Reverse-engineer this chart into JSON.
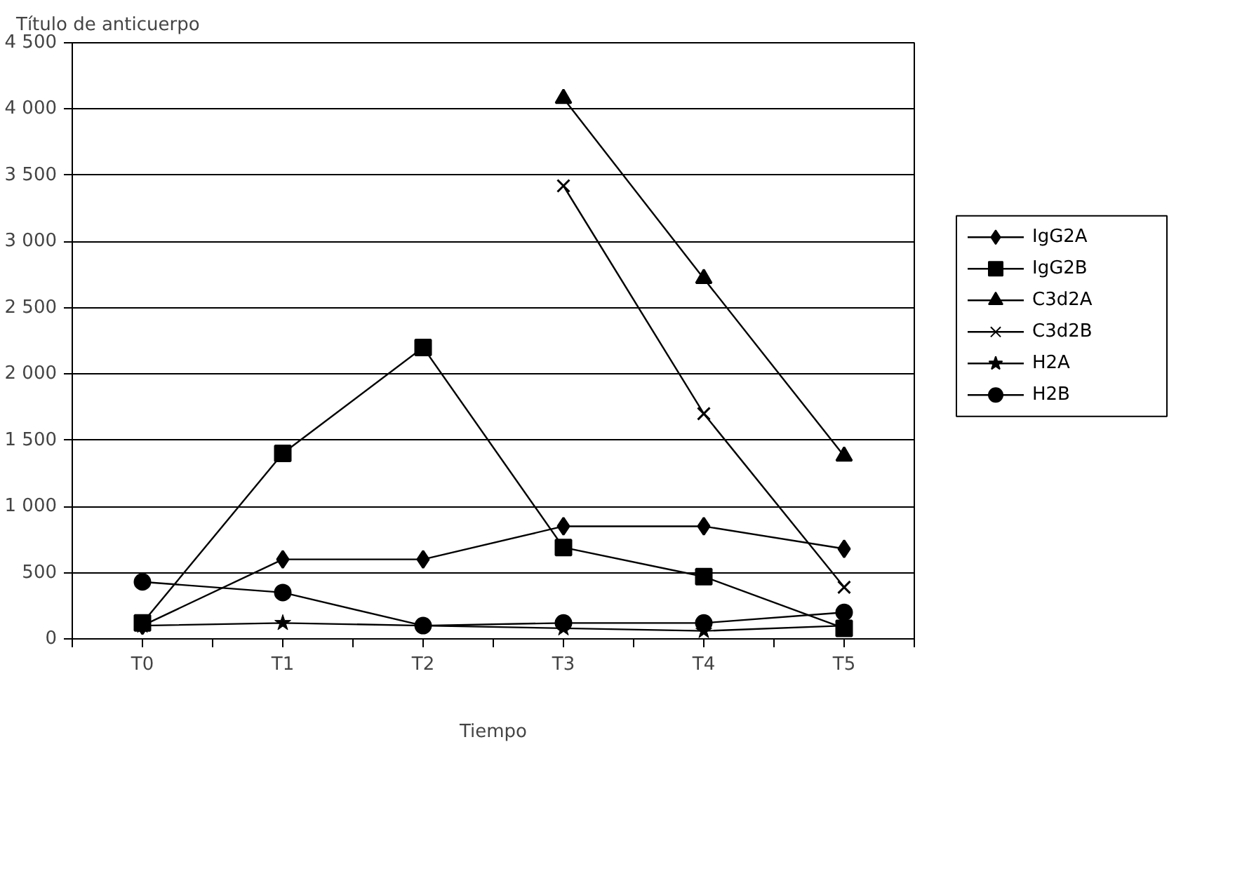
{
  "chart_data": {
    "type": "line",
    "title": "Título de anticuerpo",
    "xlabel": "Tiempo",
    "categories": [
      "T0",
      "T1",
      "T2",
      "T3",
      "T4",
      "T5"
    ],
    "ylim": [
      0,
      4500
    ],
    "yticks": [
      {
        "value": 0,
        "label": "0"
      },
      {
        "value": 500,
        "label": "500"
      },
      {
        "value": 1000,
        "label": "1 000"
      },
      {
        "value": 1500,
        "label": "1 500"
      },
      {
        "value": 2000,
        "label": "2 000"
      },
      {
        "value": 2500,
        "label": "2 500"
      },
      {
        "value": 3000,
        "label": "3 000"
      },
      {
        "value": 3500,
        "label": "3 500"
      },
      {
        "value": 4000,
        "label": "4 000"
      },
      {
        "value": 4500,
        "label": "4 500"
      }
    ],
    "grid": "y",
    "legend": "right",
    "line_style": "solid",
    "series": [
      {
        "name": "IgG2A",
        "color": "#000000",
        "marker": "diamond",
        "values": [
          100,
          600,
          600,
          850,
          850,
          680
        ]
      },
      {
        "name": "IgG2B",
        "color": "#000000",
        "marker": "square",
        "values": [
          120,
          1400,
          2200,
          690,
          470,
          80
        ]
      },
      {
        "name": "C3d2A",
        "color": "#000000",
        "marker": "triangle",
        "values": [
          null,
          null,
          null,
          4080,
          2720,
          1380
        ]
      },
      {
        "name": "C3d2B",
        "color": "#000000",
        "marker": "cross",
        "values": [
          null,
          null,
          null,
          3420,
          1700,
          390
        ]
      },
      {
        "name": "H2A",
        "color": "#000000",
        "marker": "star",
        "values": [
          100,
          120,
          100,
          80,
          60,
          100
        ]
      },
      {
        "name": "H2B",
        "color": "#000000",
        "marker": "circle",
        "values": [
          430,
          350,
          100,
          120,
          120,
          200
        ]
      }
    ]
  }
}
